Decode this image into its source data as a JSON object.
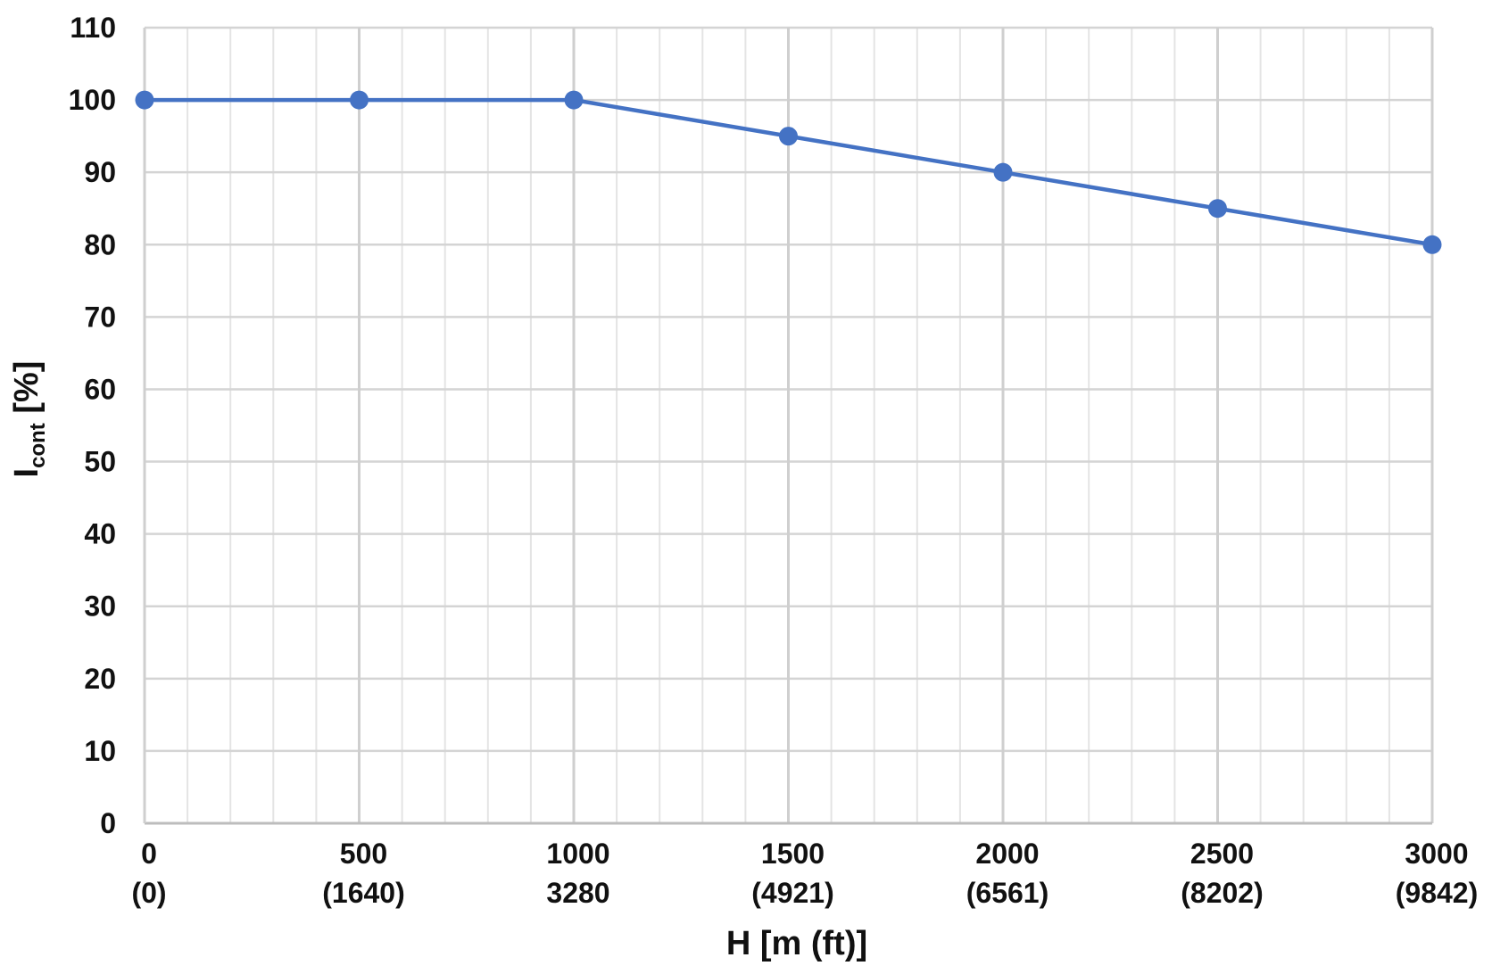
{
  "chart_data": {
    "type": "line",
    "xlabel": "H [m (ft)]",
    "ylabel_main": "I",
    "ylabel_sub": "cont",
    "ylabel_unit": " [%]",
    "xlim": [
      0,
      3000
    ],
    "ylim": [
      0,
      110
    ],
    "x_ticks": [
      {
        "value": 0,
        "label": "0",
        "sublabel": "(0)"
      },
      {
        "value": 500,
        "label": "500",
        "sublabel": "(1640)"
      },
      {
        "value": 1000,
        "label": "1000",
        "sublabel": "3280"
      },
      {
        "value": 1500,
        "label": "1500",
        "sublabel": "(4921)"
      },
      {
        "value": 2000,
        "label": "2000",
        "sublabel": "(6561)"
      },
      {
        "value": 2500,
        "label": "2500",
        "sublabel": "(8202)"
      },
      {
        "value": 3000,
        "label": "3000",
        "sublabel": "(9842)"
      }
    ],
    "x_minor_step": 100,
    "y_ticks": [
      0,
      10,
      20,
      30,
      40,
      50,
      60,
      70,
      80,
      90,
      100,
      110
    ],
    "grid": true,
    "series": [
      {
        "x": [
          0,
          500,
          1000,
          1500,
          2000,
          2500,
          3000
        ],
        "y": [
          100,
          100,
          100,
          95,
          90,
          85,
          80
        ],
        "color": "#4472C4"
      }
    ]
  }
}
